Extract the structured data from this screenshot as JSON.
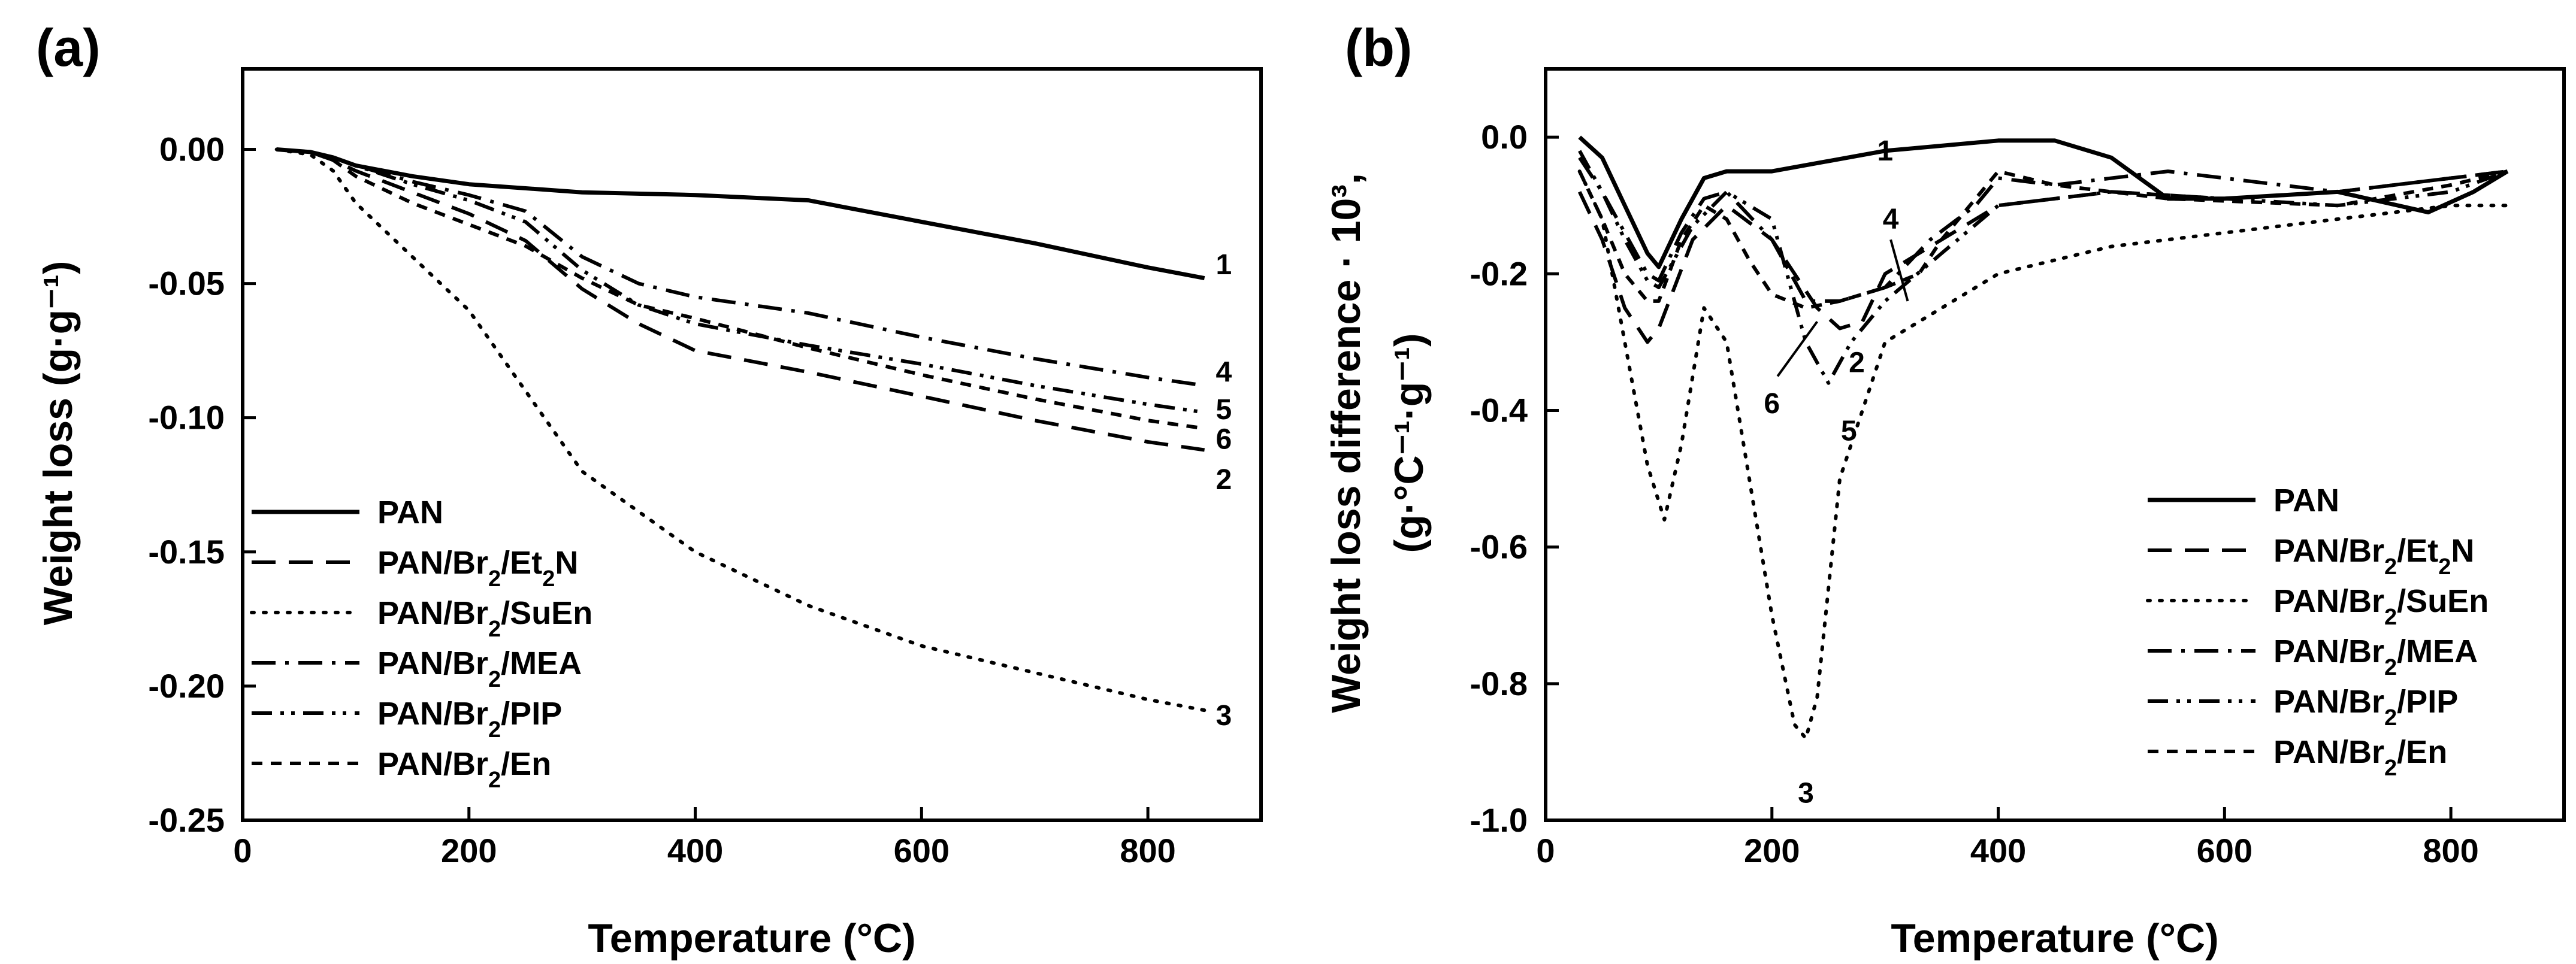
{
  "chart_data": [
    {
      "type": "line",
      "panel_label": "(a)",
      "xlabel": "Temperature (°C)",
      "ylabel": "Weight loss (g·g⁻¹)",
      "xlim": [
        0,
        900
      ],
      "ylim": [
        -0.25,
        0.03
      ],
      "xticks": [
        "0",
        "200",
        "400",
        "600",
        "800"
      ],
      "yticks": [
        "0.00",
        "-0.05",
        "-0.10",
        "-0.15",
        "-0.20",
        "-0.25"
      ],
      "xtick_values": [
        0,
        200,
        400,
        600,
        800
      ],
      "ytick_values": [
        0,
        -0.05,
        -0.1,
        -0.15,
        -0.2,
        -0.25
      ],
      "legend_position": "bottom-left",
      "series": [
        {
          "name": "PAN",
          "style": "solid",
          "label": "1",
          "label_at": [
            860,
            -0.043
          ],
          "x": [
            30,
            60,
            80,
            100,
            150,
            200,
            300,
            400,
            500,
            600,
            700,
            800,
            850
          ],
          "y": [
            0,
            -0.001,
            -0.003,
            -0.006,
            -0.01,
            -0.013,
            -0.016,
            -0.017,
            -0.019,
            -0.027,
            -0.035,
            -0.044,
            -0.048
          ]
        },
        {
          "name": "PAN/Br2/Et2N",
          "style": "dash",
          "label": "2",
          "label_at": [
            860,
            -0.123
          ],
          "x": [
            30,
            60,
            80,
            100,
            150,
            200,
            250,
            300,
            350,
            400,
            500,
            600,
            700,
            800,
            850
          ],
          "y": [
            0,
            -0.001,
            -0.004,
            -0.008,
            -0.016,
            -0.024,
            -0.034,
            -0.052,
            -0.065,
            -0.075,
            -0.083,
            -0.092,
            -0.101,
            -0.109,
            -0.112
          ]
        },
        {
          "name": "PAN/Br2/SuEn",
          "style": "dot",
          "label": "3",
          "label_at": [
            860,
            -0.211
          ],
          "x": [
            30,
            60,
            80,
            100,
            150,
            200,
            250,
            300,
            400,
            500,
            600,
            700,
            800,
            850
          ],
          "y": [
            0,
            -0.002,
            -0.008,
            -0.02,
            -0.04,
            -0.06,
            -0.09,
            -0.12,
            -0.15,
            -0.17,
            -0.185,
            -0.195,
            -0.205,
            -0.209
          ]
        },
        {
          "name": "PAN/Br2/MEA",
          "style": "dashdot",
          "label": "4",
          "label_at": [
            860,
            -0.083
          ],
          "x": [
            30,
            60,
            80,
            100,
            150,
            200,
            250,
            300,
            350,
            400,
            500,
            600,
            700,
            800,
            850
          ],
          "y": [
            0,
            -0.001,
            -0.003,
            -0.006,
            -0.012,
            -0.017,
            -0.023,
            -0.04,
            -0.05,
            -0.055,
            -0.061,
            -0.07,
            -0.078,
            -0.085,
            -0.088
          ]
        },
        {
          "name": "PAN/Br2/PIP",
          "style": "dashdotdot",
          "label": "5",
          "label_at": [
            860,
            -0.097
          ],
          "x": [
            30,
            60,
            80,
            100,
            150,
            200,
            250,
            300,
            350,
            400,
            500,
            600,
            700,
            800,
            850
          ],
          "y": [
            0,
            -0.001,
            -0.003,
            -0.006,
            -0.013,
            -0.019,
            -0.027,
            -0.045,
            -0.058,
            -0.065,
            -0.073,
            -0.08,
            -0.088,
            -0.095,
            -0.098
          ]
        },
        {
          "name": "PAN/Br2/En",
          "style": "shortdash",
          "label": "6",
          "label_at": [
            860,
            -0.108
          ],
          "x": [
            30,
            60,
            80,
            100,
            150,
            200,
            250,
            300,
            350,
            400,
            500,
            600,
            700,
            800,
            850
          ],
          "y": [
            0,
            -0.001,
            -0.004,
            -0.01,
            -0.02,
            -0.028,
            -0.036,
            -0.048,
            -0.058,
            -0.063,
            -0.074,
            -0.084,
            -0.093,
            -0.101,
            -0.104
          ]
        }
      ]
    },
    {
      "type": "line",
      "panel_label": "(b)",
      "xlabel": "Temperature (°C)",
      "ylabel_line1": "Weight loss difference · 10³,",
      "ylabel_line2": "(g·°C⁻¹·g⁻¹)",
      "xlim": [
        0,
        900
      ],
      "ylim": [
        -1.0,
        0.1
      ],
      "xticks": [
        "0",
        "200",
        "400",
        "600",
        "800"
      ],
      "yticks": [
        "0.0",
        "-0.2",
        "-0.4",
        "-0.6",
        "-0.8",
        "-1.0"
      ],
      "xtick_values": [
        0,
        200,
        400,
        600,
        800
      ],
      "ytick_values": [
        0,
        -0.2,
        -0.4,
        -0.6,
        -0.8,
        -1.0
      ],
      "legend_position": "bottom-right",
      "series": [
        {
          "name": "PAN",
          "style": "solid",
          "x": [
            30,
            50,
            70,
            90,
            100,
            120,
            140,
            160,
            200,
            300,
            400,
            450,
            500,
            550,
            600,
            700,
            780,
            820,
            850
          ],
          "y": [
            0,
            -0.03,
            -0.1,
            -0.17,
            -0.19,
            -0.12,
            -0.06,
            -0.05,
            -0.05,
            -0.02,
            -0.005,
            -0.005,
            -0.03,
            -0.09,
            -0.09,
            -0.08,
            -0.11,
            -0.08,
            -0.05
          ]
        },
        {
          "name": "PAN/Br2/Et2N",
          "style": "dash",
          "x": [
            30,
            50,
            70,
            90,
            100,
            130,
            160,
            200,
            240,
            260,
            280,
            300,
            350,
            400,
            500,
            600,
            700,
            800,
            850
          ],
          "y": [
            -0.08,
            -0.15,
            -0.25,
            -0.3,
            -0.28,
            -0.15,
            -0.1,
            -0.15,
            -0.25,
            -0.28,
            -0.27,
            -0.2,
            -0.15,
            -0.1,
            -0.08,
            -0.09,
            -0.08,
            -0.06,
            -0.05
          ]
        },
        {
          "name": "PAN/Br2/SuEn",
          "style": "dot",
          "x": [
            30,
            50,
            70,
            90,
            105,
            120,
            140,
            160,
            200,
            220,
            230,
            240,
            260,
            300,
            400,
            500,
            600,
            700,
            800,
            850
          ],
          "y": [
            -0.05,
            -0.12,
            -0.3,
            -0.48,
            -0.56,
            -0.45,
            -0.25,
            -0.3,
            -0.7,
            -0.86,
            -0.88,
            -0.82,
            -0.5,
            -0.3,
            -0.2,
            -0.16,
            -0.14,
            -0.12,
            -0.1,
            -0.1
          ]
        },
        {
          "name": "PAN/Br2/MEA",
          "style": "dashdot",
          "x": [
            30,
            50,
            70,
            90,
            100,
            120,
            140,
            160,
            200,
            230,
            260,
            300,
            340,
            380,
            400,
            450,
            550,
            650,
            700,
            800,
            850
          ],
          "y": [
            -0.03,
            -0.08,
            -0.14,
            -0.2,
            -0.21,
            -0.14,
            -0.09,
            -0.08,
            -0.15,
            -0.24,
            -0.24,
            -0.22,
            -0.15,
            -0.1,
            -0.06,
            -0.07,
            -0.05,
            -0.07,
            -0.08,
            -0.06,
            -0.05
          ]
        },
        {
          "name": "PAN/Br2/PIP",
          "style": "dashdotdot",
          "x": [
            30,
            50,
            70,
            90,
            100,
            130,
            160,
            200,
            230,
            250,
            270,
            300,
            350,
            400,
            500,
            600,
            700,
            800,
            850
          ],
          "y": [
            -0.02,
            -0.08,
            -0.15,
            -0.21,
            -0.22,
            -0.13,
            -0.08,
            -0.12,
            -0.3,
            -0.36,
            -0.3,
            -0.24,
            -0.17,
            -0.1,
            -0.08,
            -0.09,
            -0.1,
            -0.08,
            -0.05
          ]
        },
        {
          "name": "PAN/Br2/En",
          "style": "shortdash",
          "x": [
            30,
            50,
            70,
            90,
            100,
            120,
            140,
            160,
            180,
            200,
            230,
            260,
            300,
            330,
            350,
            400,
            450,
            550,
            700,
            800,
            850
          ],
          "y": [
            -0.05,
            -0.12,
            -0.2,
            -0.24,
            -0.24,
            -0.15,
            -0.1,
            -0.12,
            -0.18,
            -0.23,
            -0.25,
            -0.24,
            -0.22,
            -0.2,
            -0.15,
            -0.05,
            -0.07,
            -0.09,
            -0.1,
            -0.07,
            -0.05
          ]
        }
      ],
      "annotations": [
        {
          "text": "1",
          "at": [
            300,
            -0.02
          ]
        },
        {
          "text": "2",
          "at": [
            275,
            -0.33
          ]
        },
        {
          "text": "3",
          "at": [
            230,
            -0.96
          ]
        },
        {
          "text": "4",
          "at": [
            305,
            -0.12
          ]
        },
        {
          "text": "5",
          "at": [
            268,
            -0.43
          ]
        },
        {
          "text": "6",
          "at": [
            200,
            -0.39
          ]
        }
      ]
    }
  ],
  "legend": {
    "labels": [
      "PAN",
      "PAN/Br",
      "PAN/Br",
      "PAN/Br",
      "PAN/Br",
      "PAN/Br"
    ],
    "subs": [
      "",
      "2",
      "2",
      "2",
      "2",
      "2"
    ],
    "suffixes": [
      "",
      "/Et",
      "/SuEn",
      "/MEA",
      "/PIP",
      "/En"
    ],
    "sub2": [
      "",
      "2",
      "",
      "",
      "",
      ""
    ],
    "tail": [
      "",
      "N",
      "",
      "",
      "",
      ""
    ]
  }
}
